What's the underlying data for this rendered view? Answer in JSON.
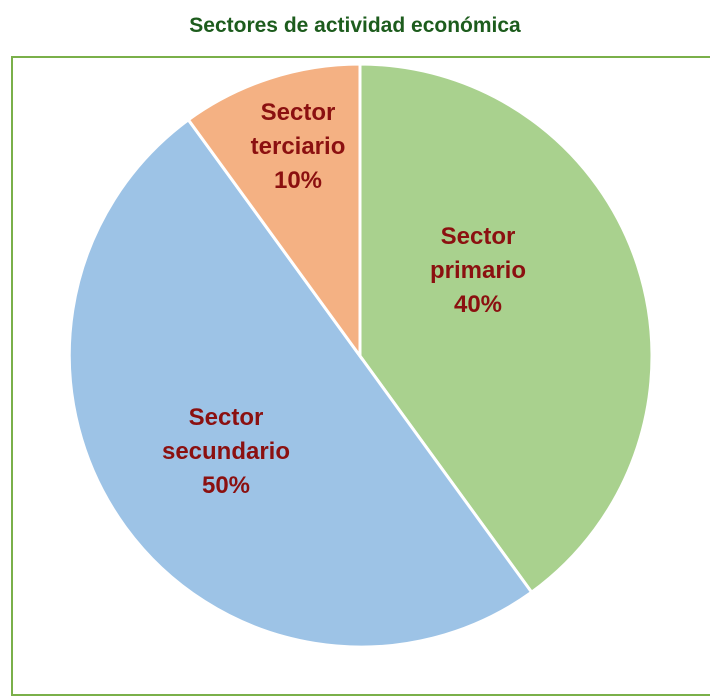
{
  "chart_data": {
    "type": "pie",
    "title": "Sectores de actividad económica",
    "slices": [
      {
        "name": "Sector primario",
        "lines": [
          "Sector",
          "primario"
        ],
        "value": 40,
        "label": "40%",
        "color": "#a9d18e"
      },
      {
        "name": "Sector secundario",
        "lines": [
          "Sector",
          "secundario"
        ],
        "value": 50,
        "label": "50%",
        "color": "#9dc3e6"
      },
      {
        "name": "Sector terciario",
        "lines": [
          "Sector",
          "terciario"
        ],
        "value": 10,
        "label": "10%",
        "color": "#f4b183"
      }
    ],
    "legend": "none"
  }
}
